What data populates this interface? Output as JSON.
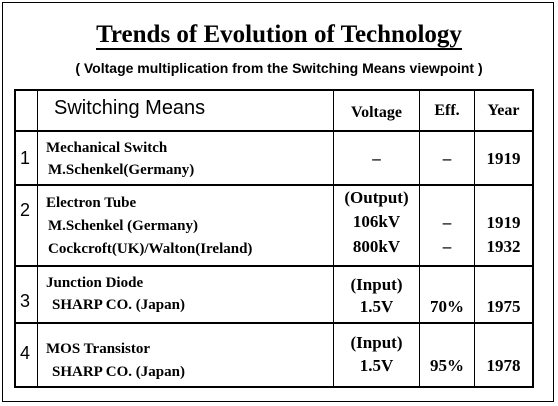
{
  "title": "Trends of Evolution of Technology",
  "subtitle": "( Voltage multiplication from the Switching Means viewpoint )",
  "headers": {
    "means": "Switching Means",
    "voltage": "Voltage",
    "eff": "Eff.",
    "year": "Year"
  },
  "rows": [
    {
      "num": "1",
      "name": "Mechanical Switch",
      "who1": "M.Schenkel(Germany)",
      "volt": "–",
      "eff": "–",
      "year": "1919"
    },
    {
      "num": "2",
      "name": "Electron Tube",
      "note": "(Output)",
      "who1": "M.Schenkel (Germany)",
      "volt1": "106kV",
      "eff1": "–",
      "year1": "1919",
      "who2": "Cockcroft(UK)/Walton(Ireland)",
      "volt2": "800kV",
      "eff2": "–",
      "year2": "1932"
    },
    {
      "num": "3",
      "name": "Junction Diode",
      "who1": "SHARP CO.  (Japan)",
      "note": "(Input)",
      "volt": "1.5V",
      "eff": "70%",
      "year": "1975"
    },
    {
      "num": "4",
      "name": "MOS Transistor",
      "who1": "SHARP CO.  (Japan)",
      "note": "(Input)",
      "volt": "1.5V",
      "eff": "95%",
      "year": "1978"
    }
  ]
}
